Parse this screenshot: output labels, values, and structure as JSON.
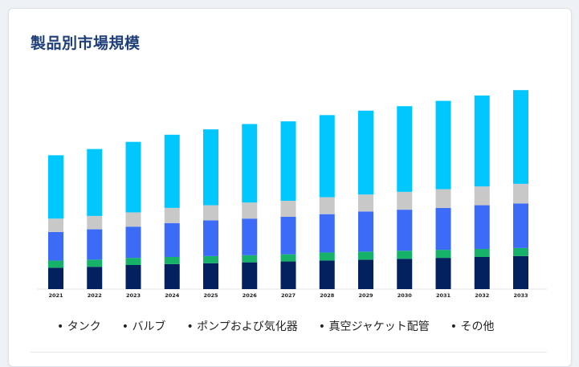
{
  "card": {
    "title": "製品別市場規模"
  },
  "colors": {
    "series": [
      "#04215f",
      "#17b26a",
      "#3b6bf7",
      "#c8c8c8",
      "#00c8ff"
    ]
  },
  "chart_data": {
    "type": "bar",
    "stacked": true,
    "grid": false,
    "legend_position": "bottom",
    "title": "製品別市場規模",
    "categories": [
      "2021",
      "2022",
      "2023",
      "2024",
      "2025",
      "2026",
      "2027",
      "2028",
      "2029",
      "2030",
      "2031",
      "2032",
      "2033"
    ],
    "series": [
      {
        "name": "タンク",
        "values": [
          24,
          25,
          27,
          28,
          29,
          30,
          31,
          32,
          33,
          34,
          35,
          36,
          37
        ]
      },
      {
        "name": "バルブ",
        "values": [
          8,
          8,
          8,
          8,
          8,
          8,
          8,
          9,
          9,
          9,
          9,
          9,
          9
        ]
      },
      {
        "name": "ポンプおよび気化器",
        "values": [
          32,
          34,
          35,
          38,
          40,
          41,
          42,
          43,
          45,
          46,
          47,
          49,
          50
        ]
      },
      {
        "name": "真空ジャケット配管",
        "values": [
          15,
          15,
          16,
          17,
          17,
          18,
          18,
          19,
          19,
          20,
          21,
          21,
          22
        ]
      },
      {
        "name": "その他",
        "values": [
          71,
          75,
          79,
          82,
          85,
          88,
          89,
          92,
          94,
          96,
          99,
          102,
          105
        ]
      }
    ],
    "ylim": [
      0,
      225
    ]
  }
}
